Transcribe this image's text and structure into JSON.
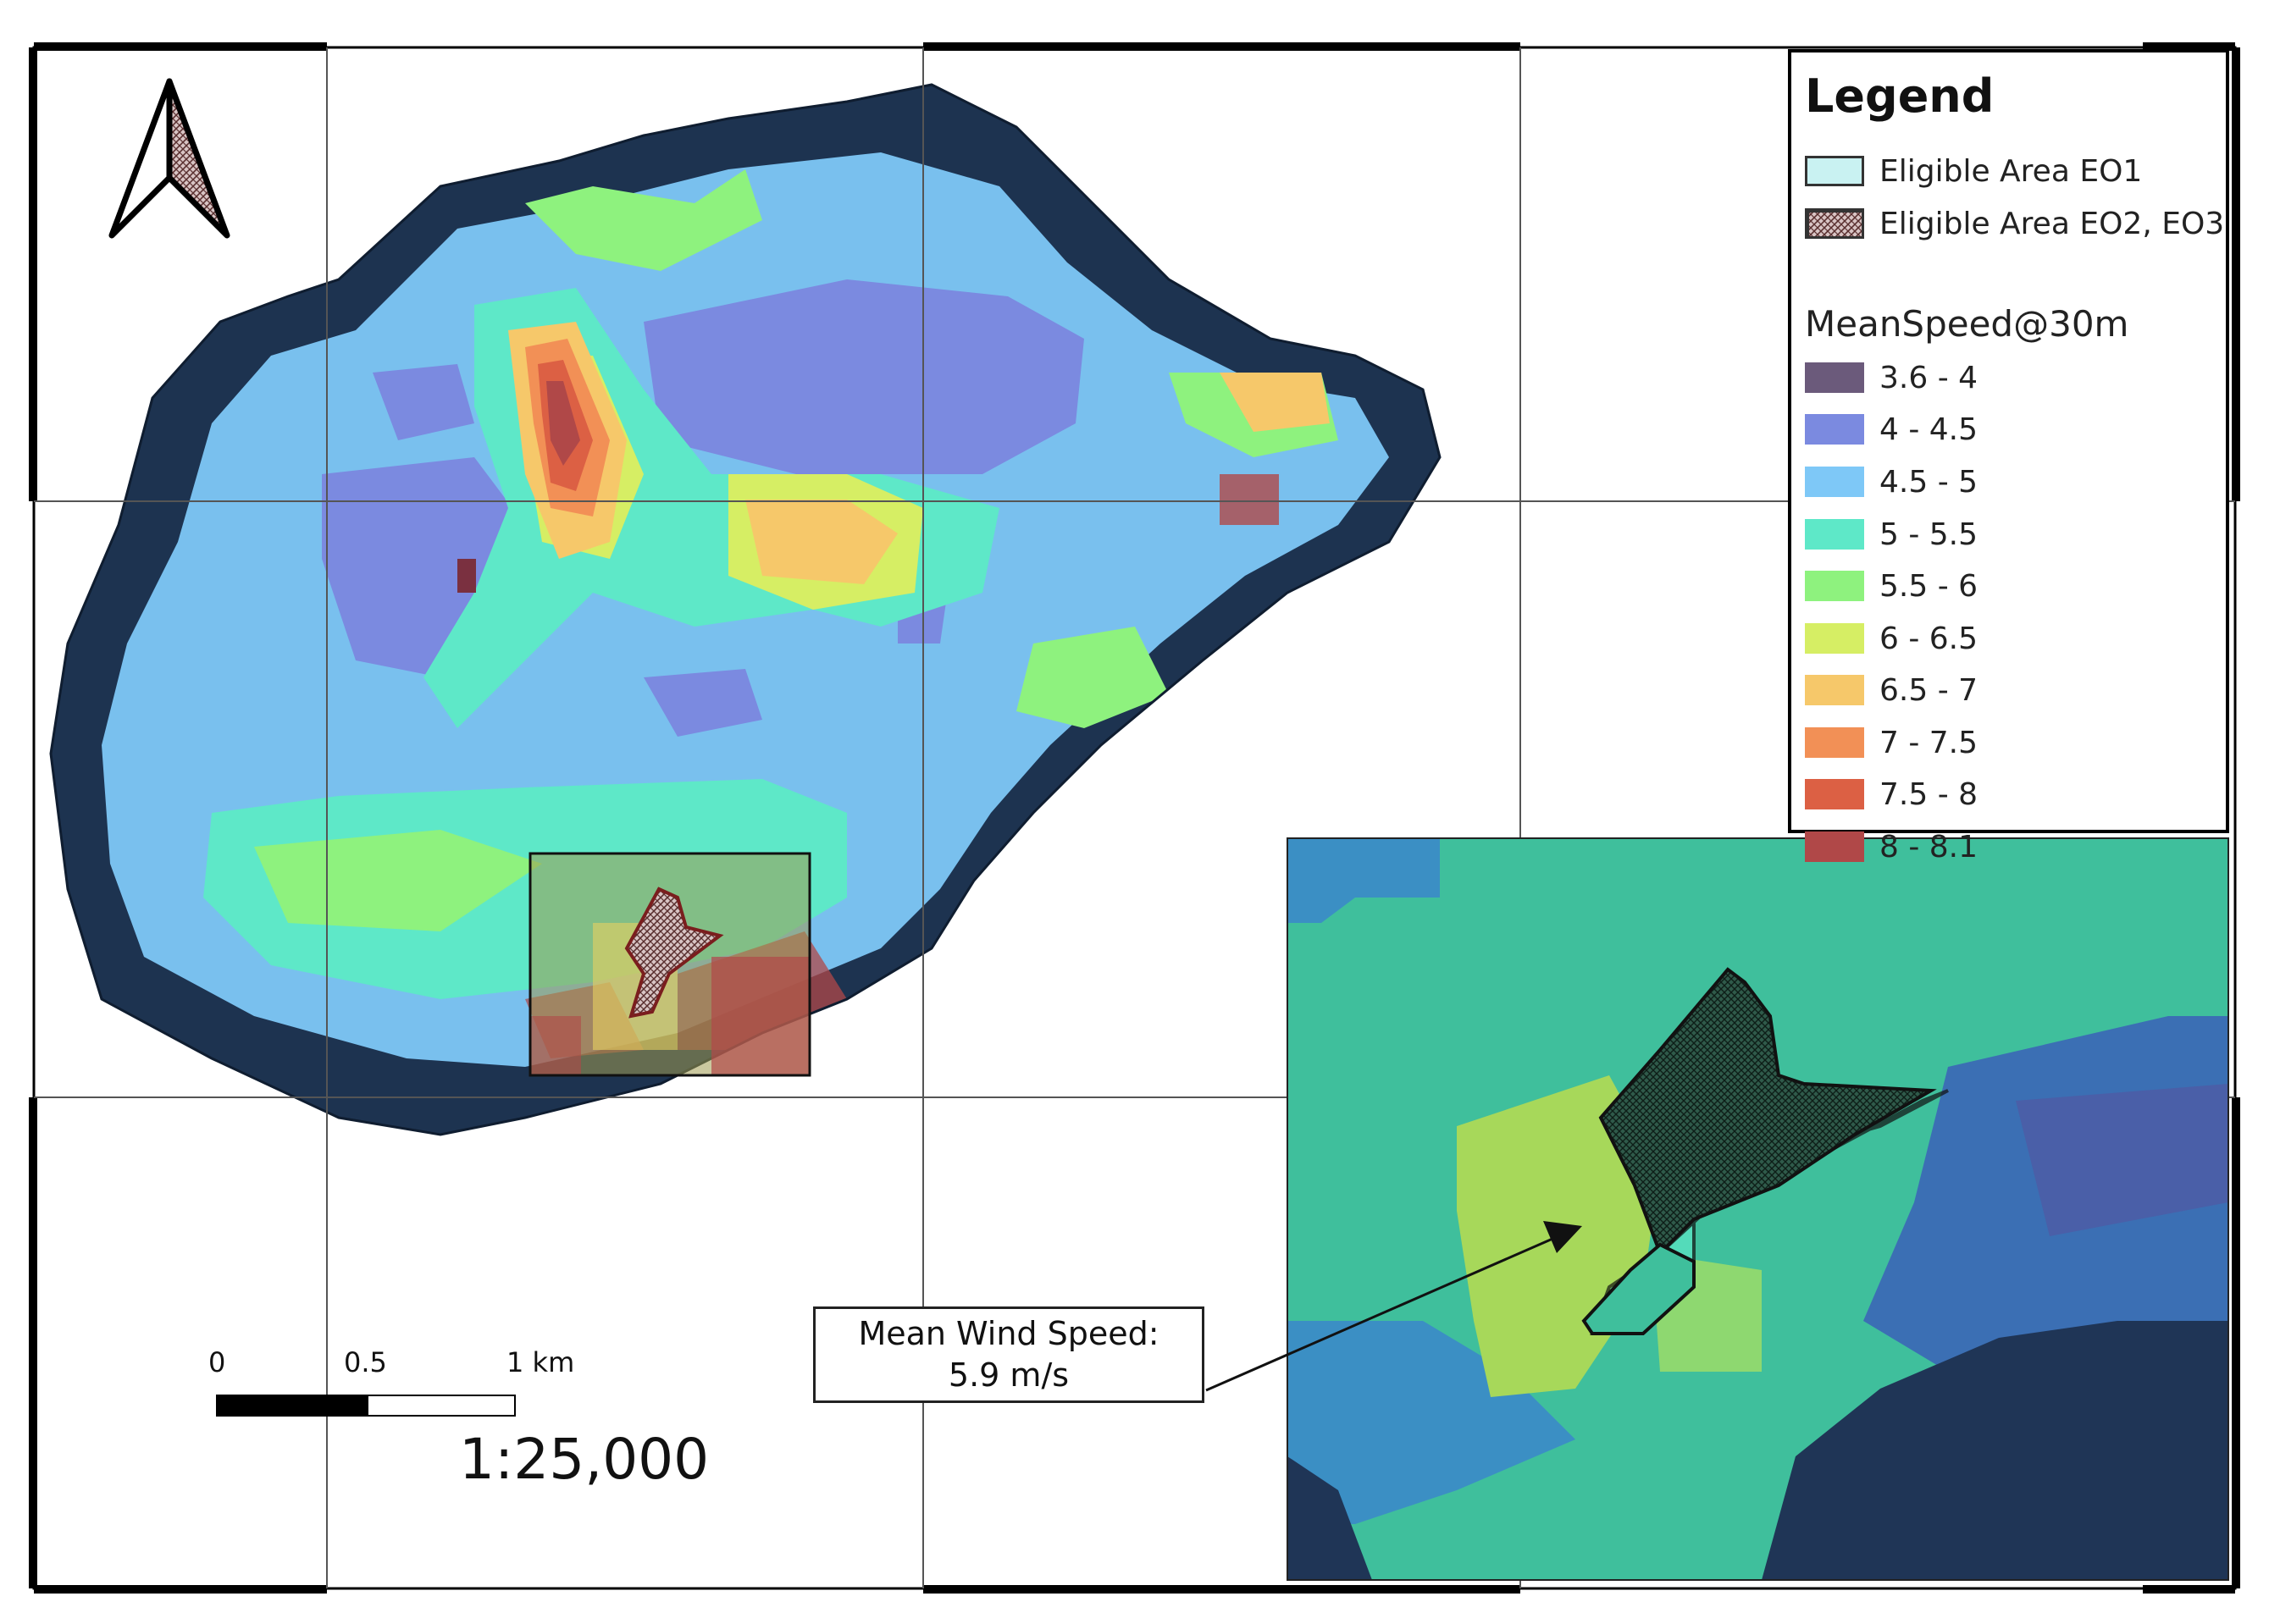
{
  "legend": {
    "title": "Legend",
    "area_items": [
      {
        "label": "Eligible Area EO1",
        "color": "#c9f2f2",
        "pattern": "none"
      },
      {
        "label": "Eligible Area EO2, EO3",
        "color": "#e8c8c8",
        "pattern": "hatch"
      }
    ],
    "subtitle": "MeanSpeed@30m",
    "classes": [
      {
        "label": "3.6 - 4",
        "color": "#6b5a7b"
      },
      {
        "label": "4 - 4.5",
        "color": "#7b8ae0"
      },
      {
        "label": "4.5 - 5",
        "color": "#7ec8f7"
      },
      {
        "label": "5 - 5.5",
        "color": "#5ee8c8"
      },
      {
        "label": "5.5 - 6",
        "color": "#8ef27e"
      },
      {
        "label": "6 - 6.5",
        "color": "#d6ee64"
      },
      {
        "label": "6.5 - 7",
        "color": "#f6c86a"
      },
      {
        "label": "7 - 7.5",
        "color": "#f29056"
      },
      {
        "label": "7.5 - 8",
        "color": "#dc6044"
      },
      {
        "label": "8 - 8.1",
        "color": "#b04848"
      }
    ]
  },
  "scale_bar": {
    "labels": [
      "0",
      "0.5",
      "1 km"
    ],
    "ratio": "1:25,000"
  },
  "callout": {
    "line1": "Mean Wind Speed:",
    "line2": "5.9 m/s"
  },
  "colors": {
    "sea": "#243e60",
    "coast": "#1b2e4a",
    "frame": "#000000"
  }
}
